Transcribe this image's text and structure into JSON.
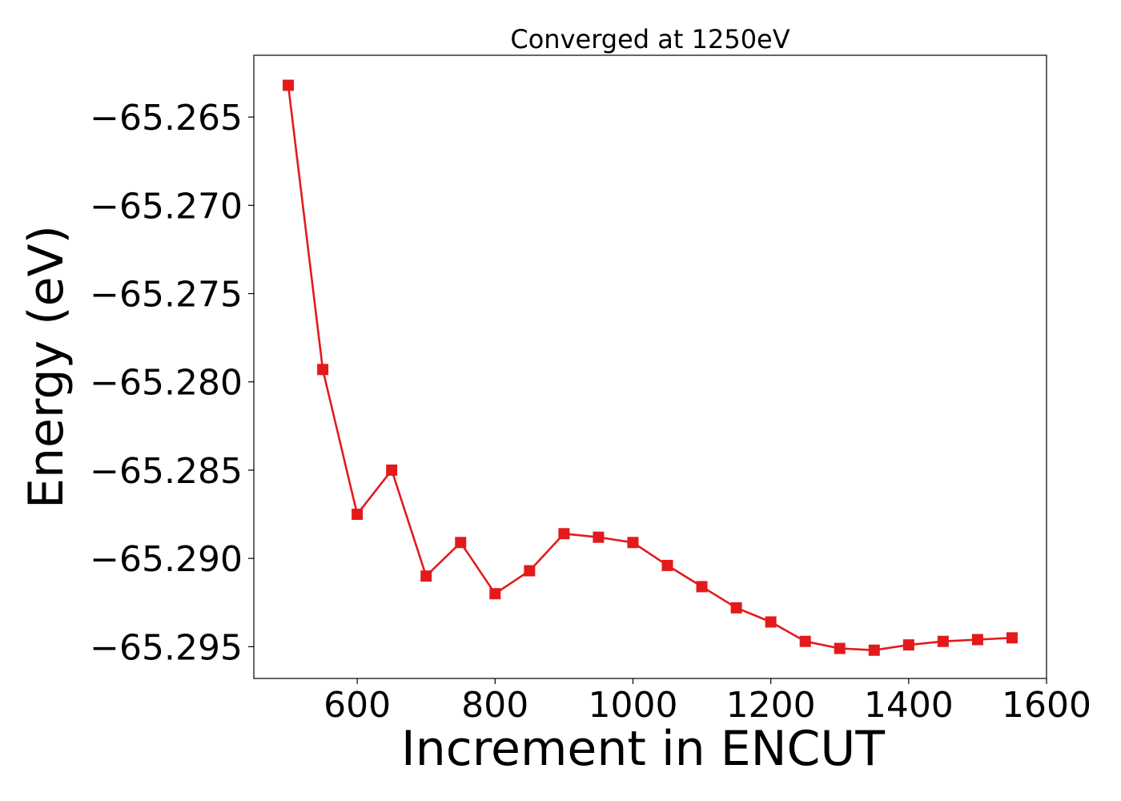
{
  "chart_data": {
    "type": "line",
    "title": "Converged at 1250eV",
    "xlabel": "Increment in ENCUT",
    "ylabel": "Energy (eV)",
    "xlim": [
      450,
      1600
    ],
    "ylim": [
      -65.2968,
      -65.2615
    ],
    "xticks": [
      600,
      800,
      1000,
      1200,
      1400,
      1600
    ],
    "yticks": [
      -65.265,
      -65.27,
      -65.275,
      -65.28,
      -65.285,
      -65.29,
      -65.295
    ],
    "xtick_labels": [
      "600",
      "800",
      "1000",
      "1200",
      "1400",
      "1600"
    ],
    "ytick_labels": [
      "−65.265",
      "−65.270",
      "−65.275",
      "−65.280",
      "−65.285",
      "−65.290",
      "−65.295"
    ],
    "grid": false,
    "marker": "square",
    "color": "#e31a1c",
    "series": [
      {
        "x": [
          500,
          550,
          600,
          650,
          700,
          750,
          800,
          850,
          900,
          950,
          1000,
          1050,
          1100,
          1150,
          1200,
          1250,
          1300,
          1350,
          1400,
          1450,
          1500,
          1550
        ],
        "y": [
          -65.2632,
          -65.2793,
          -65.2875,
          -65.285,
          -65.291,
          -65.2891,
          -65.292,
          -65.2907,
          -65.2886,
          -65.2888,
          -65.2891,
          -65.2904,
          -65.2916,
          -65.2928,
          -65.2936,
          -65.2947,
          -65.2951,
          -65.2952,
          -65.2949,
          -65.2947,
          -65.2946,
          -65.2945
        ]
      }
    ]
  }
}
